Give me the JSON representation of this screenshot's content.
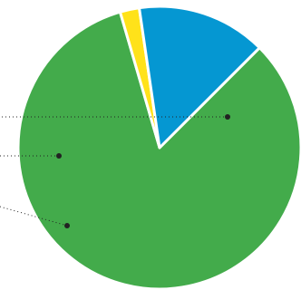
{
  "chart_data": {
    "type": "pie",
    "title": "",
    "slices": [
      {
        "value": 83.0,
        "color": "#43ab4b"
      },
      {
        "value": 2.2,
        "color": "#ffe21a"
      },
      {
        "value": 14.8,
        "color": "#0597d2"
      }
    ],
    "start_angle_deg": 45,
    "direction": "clockwise",
    "legend": "none",
    "slice_separator_color": "#ffffff",
    "leader_line_color": "#222222"
  }
}
